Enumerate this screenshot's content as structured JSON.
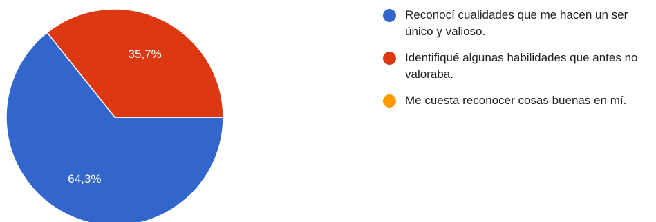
{
  "chart_data": {
    "type": "pie",
    "slices": [
      {
        "label": "Reconocí cualidades que me hacen un ser único y valioso.",
        "value": 64.3,
        "value_label": "64,3%",
        "color": "#3366cc"
      },
      {
        "label": "Identifiqué algunas habilidades que antes no valoraba.",
        "value": 35.7,
        "value_label": "35,7%",
        "color": "#dc3912"
      },
      {
        "label": "Me cuesta reconocer cosas buenas en mí.",
        "value": 0,
        "value_label": "",
        "color": "#ff9900"
      }
    ],
    "legend_position": "right"
  }
}
